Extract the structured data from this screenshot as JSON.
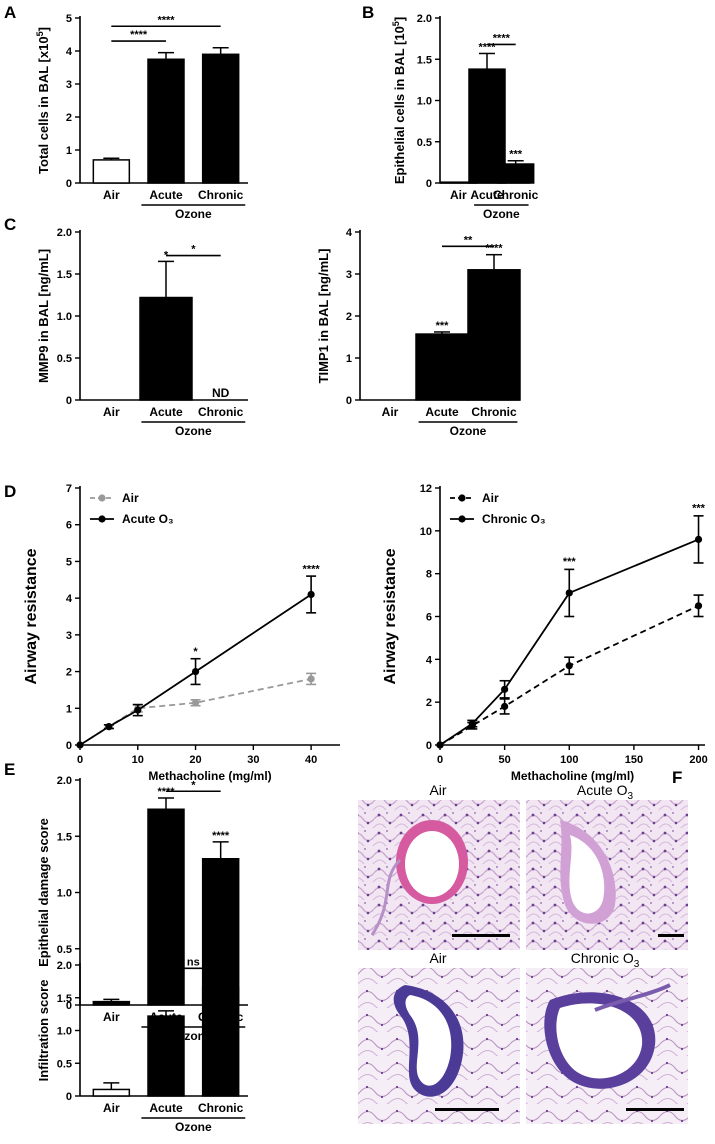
{
  "chart_data": [
    {
      "id": "A",
      "panel": "A",
      "type": "bar",
      "categories": [
        "Air",
        "Acute",
        "Chronic"
      ],
      "group_label": "Ozone",
      "values": [
        0.7,
        3.75,
        3.9
      ],
      "errors": [
        0.05,
        0.2,
        0.2
      ],
      "bar_fill": [
        "#ffffff",
        "#000000",
        "#000000"
      ],
      "ylabel": "Total cells in BAL [x10⁵]",
      "ylim": [
        0,
        5
      ],
      "yticks": [
        0,
        1,
        2,
        3,
        4,
        5
      ],
      "sig_over_bars": [
        "",
        "",
        ""
      ],
      "brackets": [
        {
          "from": 0,
          "to": 1,
          "label": "****",
          "y": 4.3
        },
        {
          "from": 0,
          "to": 2,
          "label": "****",
          "y": 4.75
        }
      ]
    },
    {
      "id": "B",
      "panel": "B",
      "type": "bar",
      "categories": [
        "Air",
        "Acute",
        "Chronic"
      ],
      "group_label": "Ozone",
      "values": [
        0.01,
        1.38,
        0.23
      ],
      "errors": [
        0.0,
        0.19,
        0.04
      ],
      "bar_fill": [
        "#000000",
        "#000000",
        "#000000"
      ],
      "ylabel": "Epithelial cells in BAL [10⁵]",
      "ylim": [
        0,
        2
      ],
      "yticks": [
        0,
        0.5,
        1.0,
        1.5,
        2.0
      ],
      "sig_over_bars": [
        "",
        "****",
        "***"
      ],
      "brackets": [
        {
          "from": 1,
          "to": 2,
          "label": "****",
          "y": 1.68
        }
      ]
    },
    {
      "id": "C1",
      "panel": "C",
      "type": "bar",
      "categories": [
        "Air",
        "Acute",
        "Chronic"
      ],
      "group_label": "Ozone",
      "values": [
        0,
        1.22,
        0
      ],
      "errors": [
        0,
        0.43,
        0
      ],
      "bar_fill": [
        "#000000",
        "#000000",
        "#000000"
      ],
      "value_text": [
        "",
        "",
        "ND"
      ],
      "ylabel": "MMP9 in BAL [ng/mL]",
      "ylim": [
        0,
        2
      ],
      "yticks": [
        0,
        0.5,
        1.0,
        1.5,
        2.0
      ],
      "sig_over_bars": [
        "",
        "*",
        ""
      ],
      "brackets": [
        {
          "from": 1,
          "to": 2,
          "label": "*",
          "y": 1.72
        }
      ]
    },
    {
      "id": "C2",
      "panel": "",
      "type": "bar",
      "categories": [
        "Air",
        "Acute",
        "Chronic"
      ],
      "group_label": "Ozone",
      "values": [
        0,
        1.57,
        3.1
      ],
      "errors": [
        0,
        0.05,
        0.36
      ],
      "bar_fill": [
        "#000000",
        "#000000",
        "#000000"
      ],
      "ylabel": "TIMP1 in BAL [ng/mL]",
      "ylim": [
        0,
        4
      ],
      "yticks": [
        0,
        1,
        2,
        3,
        4
      ],
      "sig_over_bars": [
        "",
        "***",
        "****"
      ],
      "brackets": [
        {
          "from": 1,
          "to": 2,
          "label": "**",
          "y": 3.66
        }
      ]
    },
    {
      "id": "D1",
      "panel": "D",
      "type": "line",
      "xlabel": "Methacholine (mg/ml)",
      "ylabel": "Airway resistance",
      "xlim": [
        0,
        45
      ],
      "xticks": [
        0,
        10,
        20,
        30,
        40
      ],
      "ylim": [
        0,
        7
      ],
      "yticks": [
        0,
        1,
        2,
        3,
        4,
        5,
        6,
        7
      ],
      "legend": "top-left",
      "series": [
        {
          "name": "Air",
          "color": "#999999",
          "dash": true,
          "x": [
            0,
            5,
            10,
            20,
            40
          ],
          "y": [
            0,
            0.5,
            1.0,
            1.15,
            1.8
          ],
          "err": [
            0,
            0.05,
            0.1,
            0.08,
            0.15
          ]
        },
        {
          "name": "Acute O₃",
          "color": "#000000",
          "dash": false,
          "x": [
            0,
            5,
            10,
            20,
            40
          ],
          "y": [
            0,
            0.5,
            0.95,
            2.0,
            4.1
          ],
          "err": [
            0,
            0.05,
            0.15,
            0.35,
            0.5
          ]
        }
      ],
      "annotations": [
        {
          "x": 20,
          "y": 2.45,
          "text": "*"
        },
        {
          "x": 40,
          "y": 4.7,
          "text": "****"
        }
      ]
    },
    {
      "id": "D2",
      "panel": "",
      "type": "line",
      "xlabel": "Methacholine (mg/ml)",
      "ylabel": "Airway resistance",
      "xlim": [
        0,
        205
      ],
      "xticks": [
        0,
        50,
        100,
        150,
        200
      ],
      "ylim": [
        0,
        12
      ],
      "yticks": [
        0,
        2,
        4,
        6,
        8,
        10,
        12
      ],
      "legend": "top-left",
      "series": [
        {
          "name": "Air",
          "color": "#000000",
          "dash": true,
          "x": [
            0,
            25,
            50,
            100,
            200
          ],
          "y": [
            0,
            0.9,
            1.8,
            3.7,
            6.5
          ],
          "err": [
            0,
            0.15,
            0.35,
            0.4,
            0.5
          ]
        },
        {
          "name": "Chronic O₃",
          "color": "#000000",
          "dash": false,
          "x": [
            0,
            25,
            50,
            100,
            200
          ],
          "y": [
            0,
            1.0,
            2.6,
            7.1,
            9.6
          ],
          "err": [
            0,
            0.15,
            0.4,
            1.1,
            1.1
          ]
        }
      ],
      "annotations": [
        {
          "x": 100,
          "y": 8.4,
          "text": "***"
        },
        {
          "x": 200,
          "y": 10.9,
          "text": "***"
        }
      ]
    },
    {
      "id": "E1",
      "panel": "E",
      "type": "bar",
      "categories": [
        "Air",
        "Acute",
        "Chronic"
      ],
      "group_label": "Ozone",
      "values": [
        0.03,
        1.74,
        1.3
      ],
      "errors": [
        0.02,
        0.1,
        0.15
      ],
      "bar_fill": [
        "#000000",
        "#000000",
        "#000000"
      ],
      "ylabel": "Epithelial damage score",
      "ylim": [
        0,
        2
      ],
      "yticks": [
        0,
        0.5,
        1.0,
        1.5,
        2.0
      ],
      "sig_over_bars": [
        "",
        "****",
        "****"
      ],
      "brackets": [
        {
          "from": 1,
          "to": 2,
          "label": "*",
          "y": 1.9
        }
      ]
    },
    {
      "id": "E2",
      "panel": "",
      "type": "bar",
      "categories": [
        "Air",
        "Acute",
        "Chronic"
      ],
      "group_label": "Ozone",
      "values": [
        0.1,
        1.22,
        1.65
      ],
      "errors": [
        0.1,
        0.08,
        0.22
      ],
      "bar_fill": [
        "#ffffff",
        "#000000",
        "#000000"
      ],
      "ylabel": "Infiltration score",
      "ylim": [
        0,
        2
      ],
      "yticks": [
        0,
        0.5,
        1.0,
        1.5,
        2.0
      ],
      "sig_over_bars": [
        "",
        "****",
        "****"
      ],
      "brackets": [
        {
          "from": 1,
          "to": 2,
          "label": "ns",
          "y": 1.95
        }
      ]
    }
  ],
  "histology": {
    "panel": "F",
    "images": [
      {
        "label": "Air",
        "sub": ""
      },
      {
        "label": "Acute O",
        "sub": "3"
      },
      {
        "label": "Air",
        "sub": ""
      },
      {
        "label": "Chronic O",
        "sub": "3"
      }
    ]
  }
}
